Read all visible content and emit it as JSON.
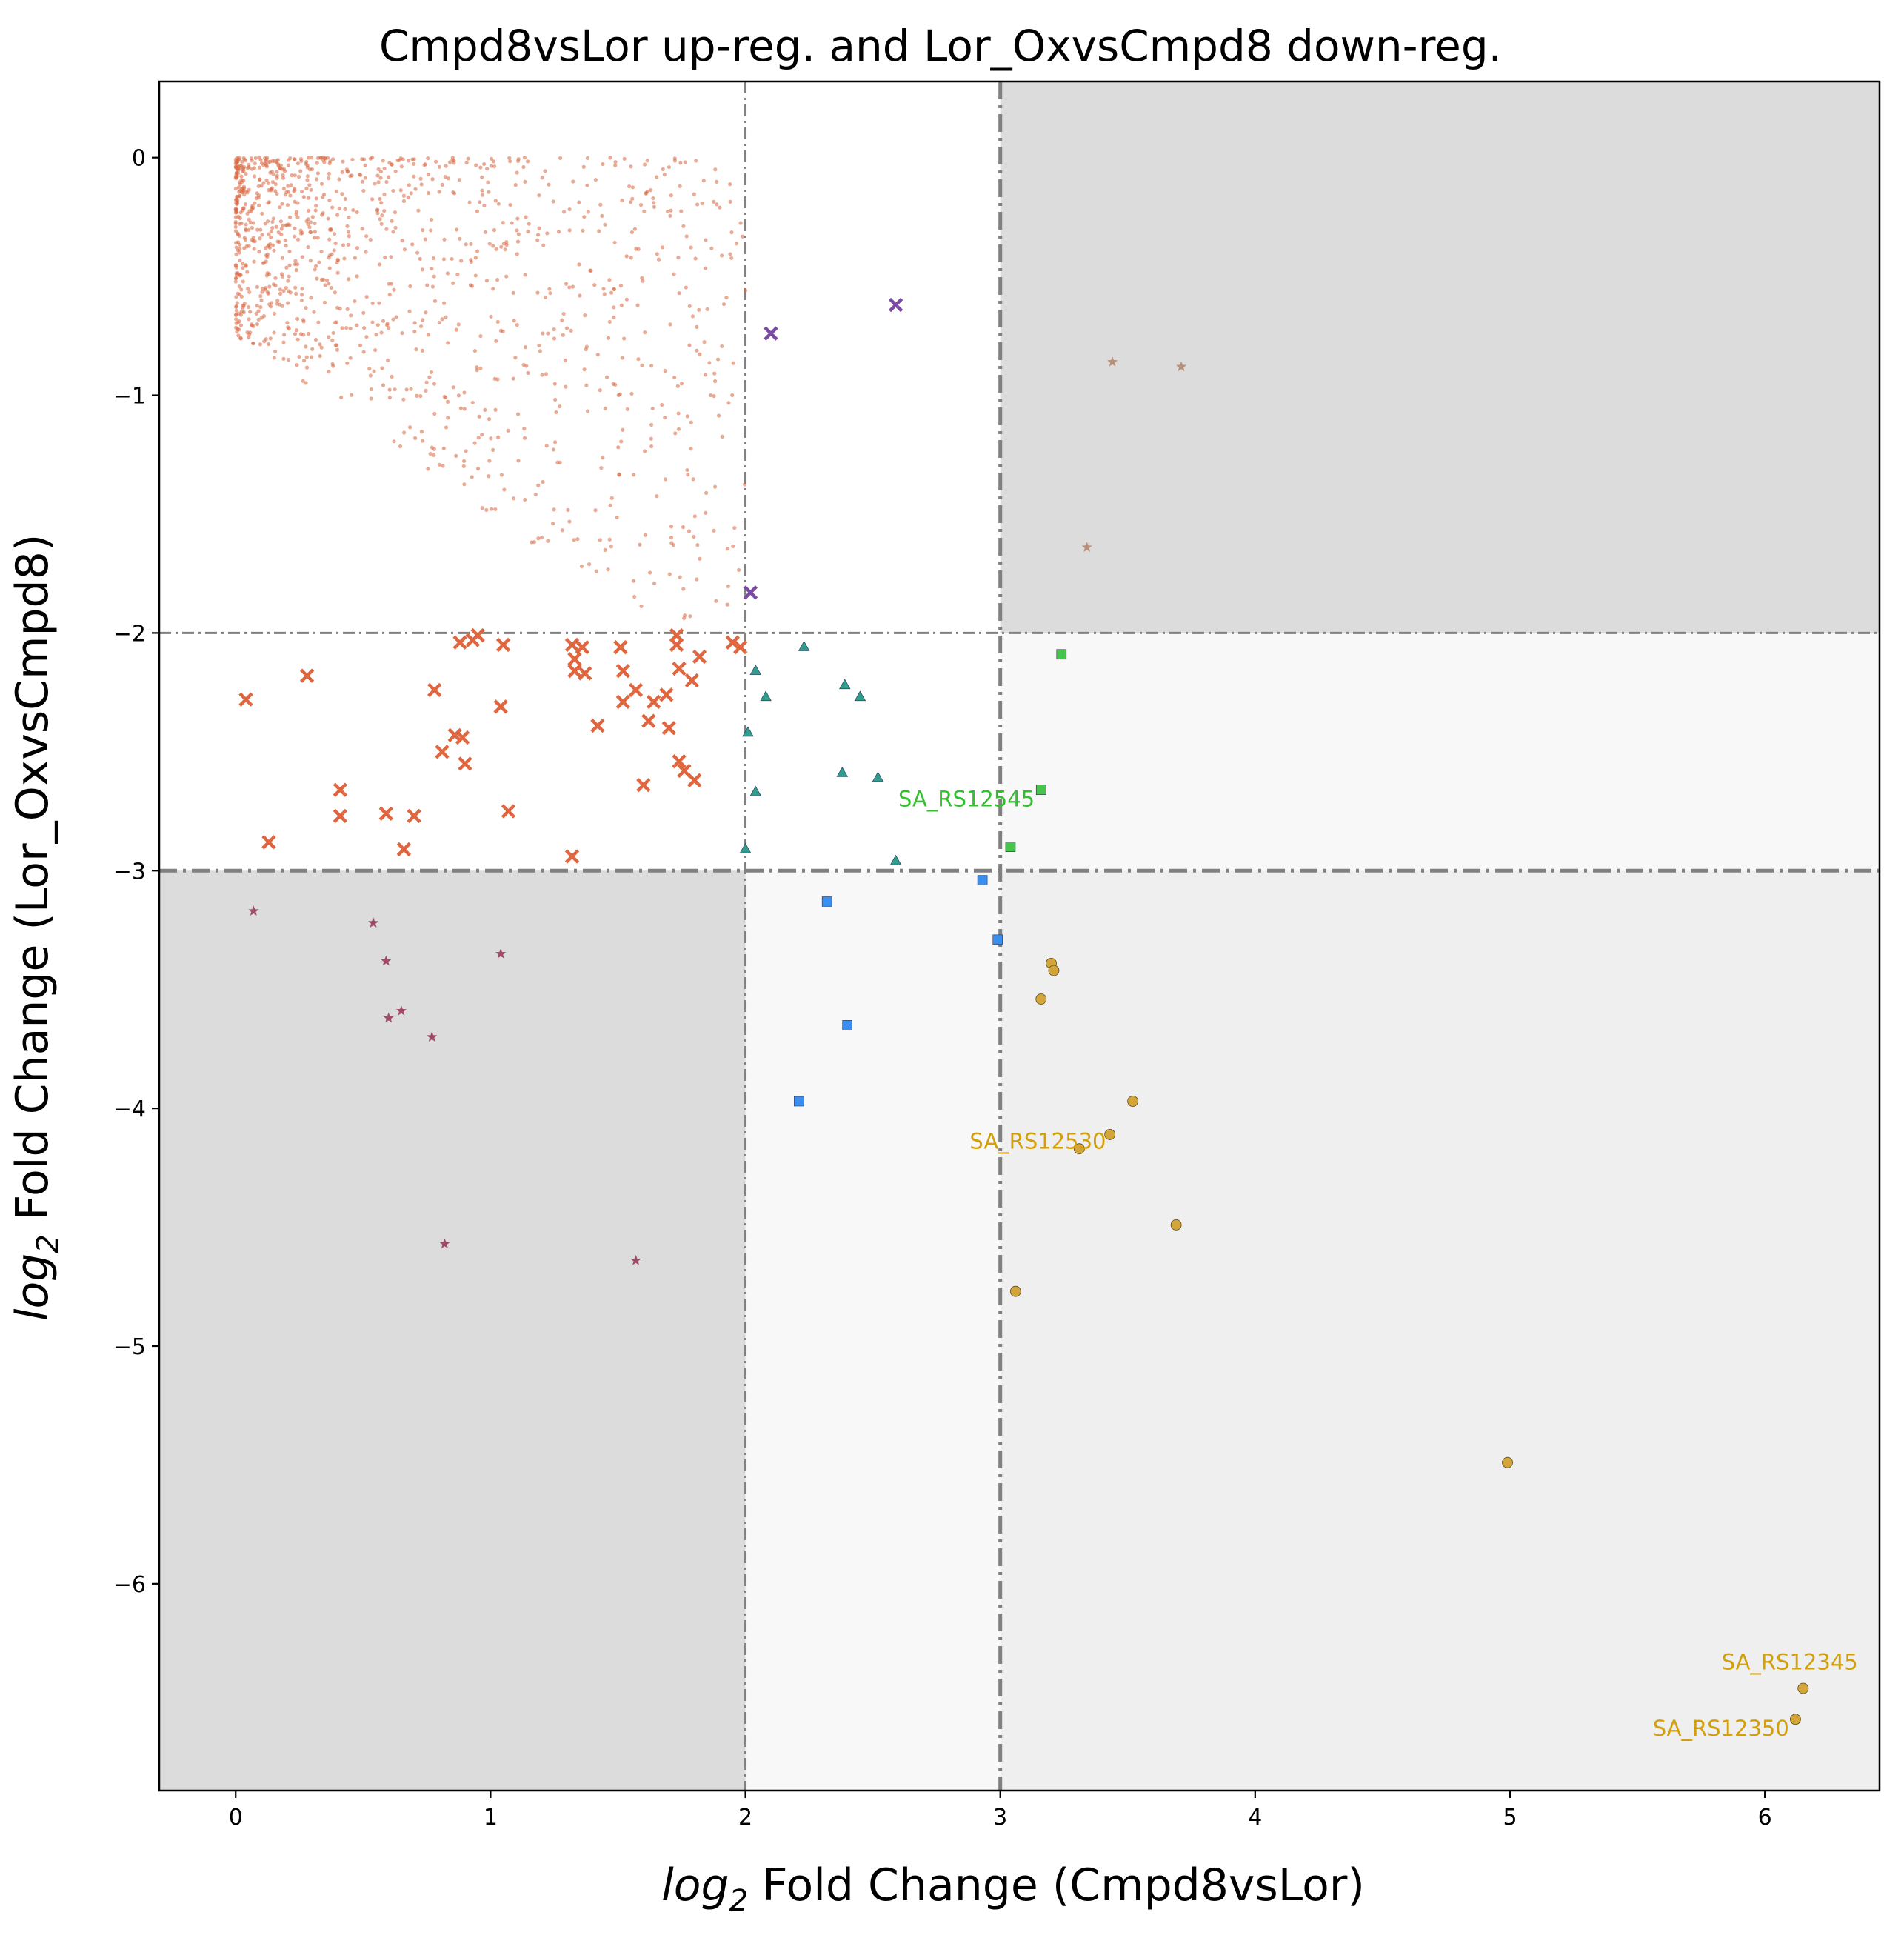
{
  "chart_data": {
    "type": "scatter",
    "title": "Cmpd8vsLor up-reg. and Lor_OxvsCmpd8 down-reg.",
    "xlabel": {
      "prefix": "log",
      "sub": "2",
      "suffix": " Fold Change (Cmpd8vsLor)"
    },
    "ylabel": {
      "prefix": "log",
      "sub": "2",
      "suffix": " Fold Change (Lor_OxvsCmpd8)"
    },
    "xlim": [
      -0.3,
      6.45
    ],
    "ylim": [
      -6.87,
      0.32
    ],
    "x_ticks": [
      0,
      1,
      2,
      3,
      4,
      5,
      6
    ],
    "x_tick_labels": [
      "0",
      "1",
      "2",
      "3",
      "4",
      "5",
      "6"
    ],
    "y_ticks": [
      0,
      -1,
      -2,
      -3,
      -4,
      -5,
      -6
    ],
    "y_tick_labels": [
      "0",
      "−1",
      "−2",
      "−3",
      "−4",
      "−5",
      "−6"
    ],
    "grid": false,
    "regions": [
      {
        "x": [
          3,
          6.45
        ],
        "y": [
          -2,
          0.32
        ],
        "color": "#dcdcdc"
      },
      {
        "x": [
          -0.3,
          2
        ],
        "y": [
          -6.87,
          -3
        ],
        "color": "#dcdcdc"
      },
      {
        "x": [
          2,
          3
        ],
        "y": [
          -6.87,
          -3
        ],
        "color": "#f8f8f8"
      },
      {
        "x": [
          3,
          6.45
        ],
        "y": [
          -3,
          -2
        ],
        "color": "#f8f8f8"
      },
      {
        "x": [
          3,
          6.45
        ],
        "y": [
          -6.87,
          -3
        ],
        "color": "#efefef"
      }
    ],
    "thresholds": {
      "x_minor": 2,
      "x_major": 3,
      "y_minor": -2,
      "y_major": -3
    },
    "background_cloud": {
      "color": "#d9663f",
      "marker": "dot",
      "approx_count": 1200,
      "x_range": [
        0,
        2
      ],
      "y_range": [
        -2,
        0
      ]
    },
    "series": [
      {
        "marker": "x",
        "color": "#e0663f",
        "points": [
          [
            0.04,
            -2.28
          ],
          [
            0.28,
            -2.18
          ],
          [
            0.13,
            -2.88
          ],
          [
            0.41,
            -2.66
          ],
          [
            0.41,
            -2.77
          ],
          [
            0.59,
            -2.76
          ],
          [
            0.66,
            -2.91
          ],
          [
            0.7,
            -2.77
          ],
          [
            0.78,
            -2.24
          ],
          [
            0.81,
            -2.5
          ],
          [
            0.86,
            -2.43
          ],
          [
            0.89,
            -2.44
          ],
          [
            0.9,
            -2.55
          ],
          [
            0.88,
            -2.04
          ],
          [
            0.93,
            -2.03
          ],
          [
            0.95,
            -2.01
          ],
          [
            1.04,
            -2.31
          ],
          [
            1.05,
            -2.05
          ],
          [
            1.07,
            -2.75
          ],
          [
            1.32,
            -2.05
          ],
          [
            1.33,
            -2.11
          ],
          [
            1.33,
            -2.16
          ],
          [
            1.36,
            -2.06
          ],
          [
            1.37,
            -2.17
          ],
          [
            1.42,
            -2.39
          ],
          [
            1.51,
            -2.06
          ],
          [
            1.52,
            -2.16
          ],
          [
            1.52,
            -2.29
          ],
          [
            1.57,
            -2.24
          ],
          [
            1.6,
            -2.64
          ],
          [
            1.62,
            -2.37
          ],
          [
            1.64,
            -2.29
          ],
          [
            1.69,
            -2.26
          ],
          [
            1.7,
            -2.4
          ],
          [
            1.73,
            -2.05
          ],
          [
            1.74,
            -2.15
          ],
          [
            1.74,
            -2.54
          ],
          [
            1.76,
            -2.58
          ],
          [
            1.73,
            -2.01
          ],
          [
            1.79,
            -2.2
          ],
          [
            1.8,
            -2.62
          ],
          [
            1.82,
            -2.1
          ],
          [
            1.95,
            -2.04
          ],
          [
            1.98,
            -2.06
          ],
          [
            1.32,
            -2.94
          ]
        ]
      },
      {
        "marker": "x",
        "color": "#7b4ba4",
        "points": [
          [
            2.1,
            -0.74
          ],
          [
            2.59,
            -0.62
          ],
          [
            2.02,
            -1.83
          ]
        ]
      },
      {
        "marker": "star",
        "color": "#b8907a",
        "points": [
          [
            3.44,
            -0.86
          ],
          [
            3.71,
            -0.88
          ],
          [
            3.34,
            -1.64
          ]
        ]
      },
      {
        "marker": "star",
        "color": "#a04a6a",
        "points": [
          [
            0.07,
            -3.17
          ],
          [
            0.54,
            -3.22
          ],
          [
            0.59,
            -3.38
          ],
          [
            0.6,
            -3.62
          ],
          [
            0.65,
            -3.59
          ],
          [
            0.77,
            -3.7
          ],
          [
            1.04,
            -3.35
          ],
          [
            0.82,
            -4.57
          ],
          [
            1.57,
            -4.64
          ]
        ]
      },
      {
        "marker": "triangle",
        "color": "#2f9c8c",
        "points": [
          [
            2.23,
            -2.06
          ],
          [
            2.04,
            -2.16
          ],
          [
            2.08,
            -2.27
          ],
          [
            2.39,
            -2.22
          ],
          [
            2.45,
            -2.27
          ],
          [
            2.01,
            -2.42
          ],
          [
            2.38,
            -2.59
          ],
          [
            2.52,
            -2.61
          ],
          [
            2.04,
            -2.67
          ],
          [
            2.0,
            -2.91
          ],
          [
            2.59,
            -2.96
          ]
        ]
      },
      {
        "marker": "square",
        "color": "#45c54a",
        "points": [
          [
            3.24,
            -2.09
          ],
          [
            3.16,
            -2.66
          ],
          [
            3.04,
            -2.9
          ]
        ]
      },
      {
        "marker": "square",
        "color": "#3a8ef0",
        "points": [
          [
            2.32,
            -3.13
          ],
          [
            2.93,
            -3.04
          ],
          [
            2.99,
            -3.29
          ],
          [
            2.4,
            -3.65
          ],
          [
            2.21,
            -3.97
          ]
        ]
      },
      {
        "marker": "circle",
        "color": "#d4a63a",
        "points": [
          [
            3.2,
            -3.39
          ],
          [
            3.21,
            -3.42
          ],
          [
            3.16,
            -3.54
          ],
          [
            3.52,
            -3.97
          ],
          [
            3.43,
            -4.11
          ],
          [
            3.31,
            -4.17
          ],
          [
            3.69,
            -4.49
          ],
          [
            3.06,
            -4.77
          ],
          [
            4.99,
            -5.49
          ],
          [
            6.15,
            -6.44
          ],
          [
            6.12,
            -6.57
          ]
        ]
      }
    ],
    "annotations": [
      {
        "text": "SA_RS12545",
        "x": 2.6,
        "y": -2.73,
        "color": "#33c02e"
      },
      {
        "text": "SA_RS12530",
        "x": 2.88,
        "y": -4.17,
        "color": "#d4a00a"
      },
      {
        "text": "SA_RS12345",
        "x": 5.83,
        "y": -6.36,
        "color": "#d4a00a"
      },
      {
        "text": "SA_RS12350",
        "x": 5.56,
        "y": -6.64,
        "color": "#d4a00a"
      }
    ]
  }
}
